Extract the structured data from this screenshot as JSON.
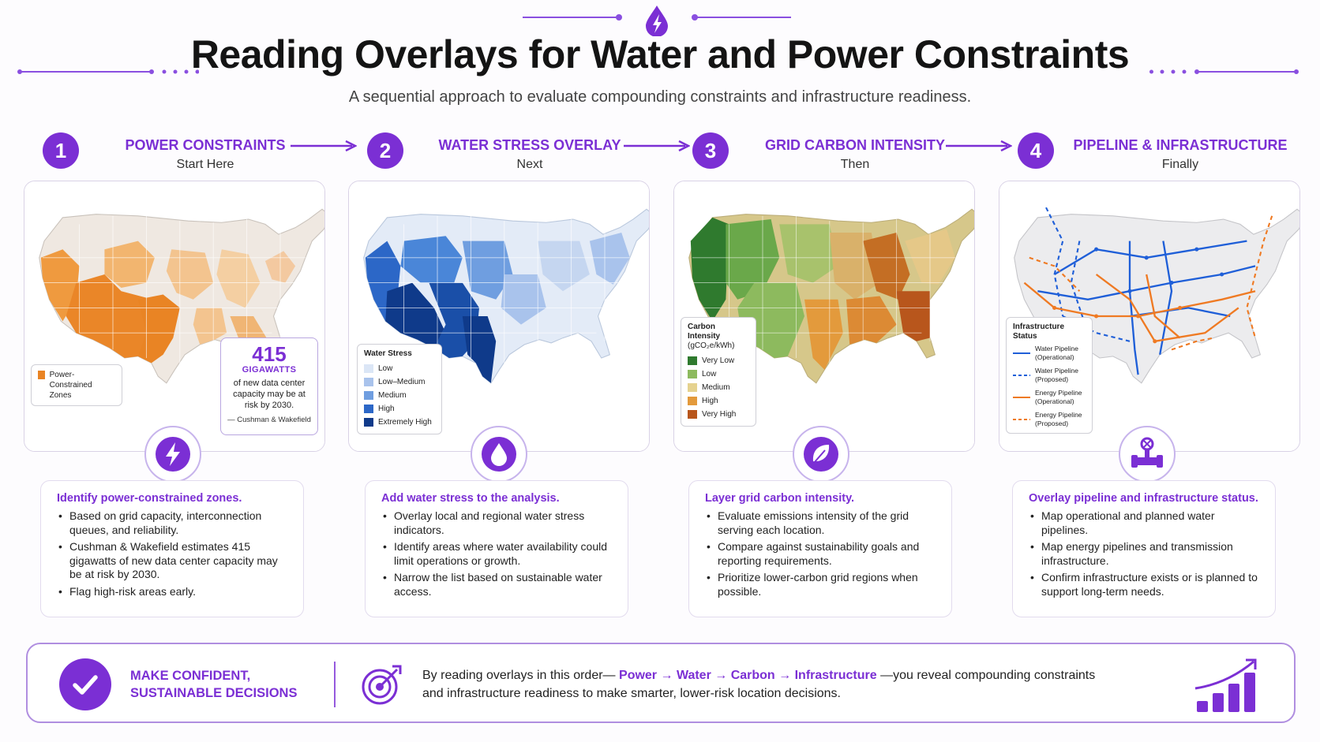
{
  "header": {
    "title": "Reading Overlays for Water and Power Constraints",
    "subtitle": "A sequential approach to evaluate compounding constraints and infrastructure readiness."
  },
  "steps": [
    {
      "number": "1",
      "title": "POWER CONSTRAINTS",
      "sub": "Start Here"
    },
    {
      "number": "2",
      "title": "WATER STRESS OVERLAY",
      "sub": "Next"
    },
    {
      "number": "3",
      "title": "GRID CARBON INTENSITY",
      "sub": "Then"
    },
    {
      "number": "4",
      "title": "PIPELINE & INFRASTRUCTURE",
      "sub": "Finally"
    }
  ],
  "maps": {
    "power": {
      "legend_label": "Power-Constrained Zones",
      "stat_value": "415",
      "stat_unit": "GIGAWATTS",
      "stat_text": "of new data center capacity may be at risk by 2030.",
      "stat_source": "— Cushman & Wakefield"
    },
    "water": {
      "legend_title": "Water Stress",
      "items": [
        "Low",
        "Low–Medium",
        "Medium",
        "High",
        "Extremely High"
      ]
    },
    "carbon": {
      "legend_title_line1": "Carbon Intensity",
      "legend_title_line2": "(gCO₂e/kWh)",
      "items": [
        "Very Low",
        "Low",
        "Medium",
        "High",
        "Very High"
      ]
    },
    "infra": {
      "legend_title": "Infrastructure Status",
      "items": [
        {
          "line1": "Water Pipeline",
          "line2": "(Operational)"
        },
        {
          "line1": "Water Pipeline",
          "line2": "(Proposed)"
        },
        {
          "line1": "Energy Pipeline",
          "line2": "(Operational)"
        },
        {
          "line1": "Energy Pipeline",
          "line2": "(Proposed)"
        }
      ]
    }
  },
  "cards": [
    {
      "head": "Identify power-constrained zones.",
      "bullets": [
        "Based on grid capacity, interconnection queues, and reliability.",
        "Cushman & Wakefield estimates 415 gigawatts of new data center capacity may be at risk by 2030.",
        "Flag high-risk areas early."
      ]
    },
    {
      "head": "Add water stress to the analysis.",
      "bullets": [
        "Overlay local and regional water stress indicators.",
        "Identify areas where water availability could limit operations or growth.",
        "Narrow the list based on sustainable water access."
      ]
    },
    {
      "head": "Layer grid carbon intensity.",
      "bullets": [
        "Evaluate emissions intensity of the grid serving each location.",
        "Compare against sustainability goals and reporting requirements.",
        "Prioritize lower-carbon grid regions when possible."
      ]
    },
    {
      "head": "Overlay pipeline and infrastructure status.",
      "bullets": [
        "Map operational and planned water pipelines.",
        "Map energy pipelines and transmission infrastructure.",
        "Confirm infrastructure exists or is planned to support long-term needs."
      ]
    }
  ],
  "banner": {
    "head_line1": "MAKE CONFIDENT,",
    "head_line2": "SUSTAINABLE DECISIONS",
    "text_prefix": "By reading overlays in this order—",
    "seq": [
      "Power",
      "Water",
      "Carbon",
      "Infrastructure"
    ],
    "arrow": "→",
    "text_suffix_1": "—you reveal compounding constraints",
    "text_line2": "and infrastructure readiness to make smarter, lower-risk location decisions."
  },
  "colors": {
    "accent": "#7b2fd4",
    "power": [
      "#f7e6d2",
      "#f3c48f",
      "#efa55a",
      "#e98424"
    ],
    "water": [
      "#dbe6f6",
      "#a9c3ec",
      "#6f9ee0",
      "#2c67c7",
      "#0f3a8a"
    ],
    "carbon": [
      "#2f7a2e",
      "#8dba5e",
      "#e5d28f",
      "#e39a3c",
      "#b8561c"
    ],
    "water_pipe": "#1f5fd8",
    "energy_pipe": "#ef7a23"
  }
}
